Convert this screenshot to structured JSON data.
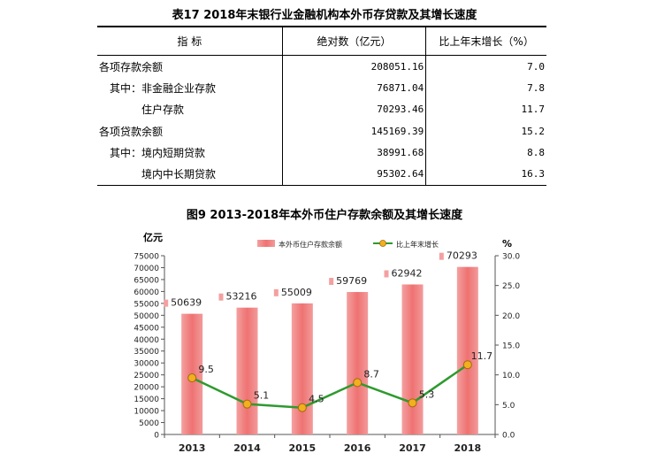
{
  "table": {
    "title": "表17  2018年末银行业金融机构本外币存贷款及其增长速度",
    "headers": [
      "指    标",
      "绝对数（亿元）",
      "比上年末增长（%）"
    ],
    "rows": [
      {
        "label": "各项存款余额",
        "value": "208051.16",
        "growth": "7.0"
      },
      {
        "label": "其中：非金融企业存款",
        "value": "76871.04",
        "growth": "7.8"
      },
      {
        "label": "住户存款",
        "value": "70293.46",
        "growth": "11.7"
      },
      {
        "label": "各项贷款余额",
        "value": "145169.39",
        "growth": "15.2"
      },
      {
        "label": "其中：境内短期贷款",
        "value": "38991.68",
        "growth": "8.8"
      },
      {
        "label": "境内中长期贷款",
        "value": "95302.64",
        "growth": "16.3"
      }
    ]
  },
  "chart_data": {
    "type": "bar",
    "title": "图9  2013-2018年本外币住户存款余额及其增长速度",
    "categories": [
      "2013",
      "2014",
      "2015",
      "2016",
      "2017",
      "2018"
    ],
    "y_left_unit": "亿元",
    "y_right_unit": "%",
    "y_left_ticks": [
      "0",
      "5000",
      "10000",
      "15000",
      "20000",
      "25000",
      "30000",
      "35000",
      "40000",
      "45000",
      "50000",
      "55000",
      "60000",
      "65000",
      "70000",
      "75000"
    ],
    "y_right_ticks": [
      "0.0",
      "5.0",
      "10.0",
      "15.0",
      "20.0",
      "25.0",
      "30.0"
    ],
    "ylim_left": [
      0,
      75000
    ],
    "ylim_right": [
      0,
      30
    ],
    "legend_position": "top",
    "series": [
      {
        "name": "本外币住户存款余额",
        "type": "bar",
        "axis": "left",
        "color": "#f07a7a",
        "values": [
          50639,
          53216,
          55009,
          59769,
          62942,
          70293
        ],
        "labels": [
          "50639",
          "53216",
          "55009",
          "59769",
          "62942",
          "70293"
        ]
      },
      {
        "name": "比上年末增长",
        "type": "line",
        "axis": "right",
        "color": "#2e9a2e",
        "marker_color": "#f2b01e",
        "values": [
          9.5,
          5.1,
          4.5,
          8.7,
          5.3,
          11.7
        ],
        "labels": [
          "9.5",
          "5.1",
          "4.5",
          "8.7",
          "5.3",
          "11.7"
        ]
      }
    ]
  }
}
